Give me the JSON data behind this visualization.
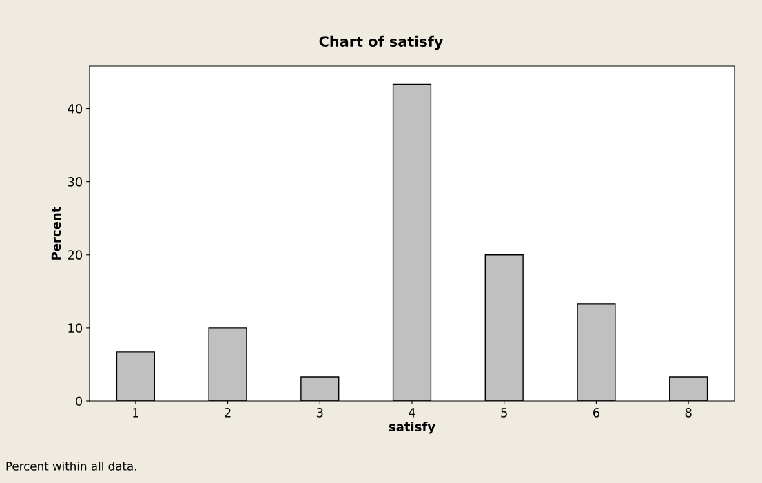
{
  "chart_data": {
    "type": "bar",
    "title": "Chart of satisfy",
    "xlabel": "satisfy",
    "ylabel": "Percent",
    "categories": [
      "1",
      "2",
      "3",
      "4",
      "5",
      "6",
      "8"
    ],
    "values": [
      6.7,
      10,
      3.3,
      43.3,
      20,
      13.3,
      3.3
    ],
    "color": "#c0c0c0",
    "ylim": [
      0,
      45.8
    ],
    "yticks": [
      0,
      10,
      20,
      30,
      40
    ],
    "grid": false,
    "legend": false,
    "annotations": [
      "Percent within all data."
    ]
  }
}
